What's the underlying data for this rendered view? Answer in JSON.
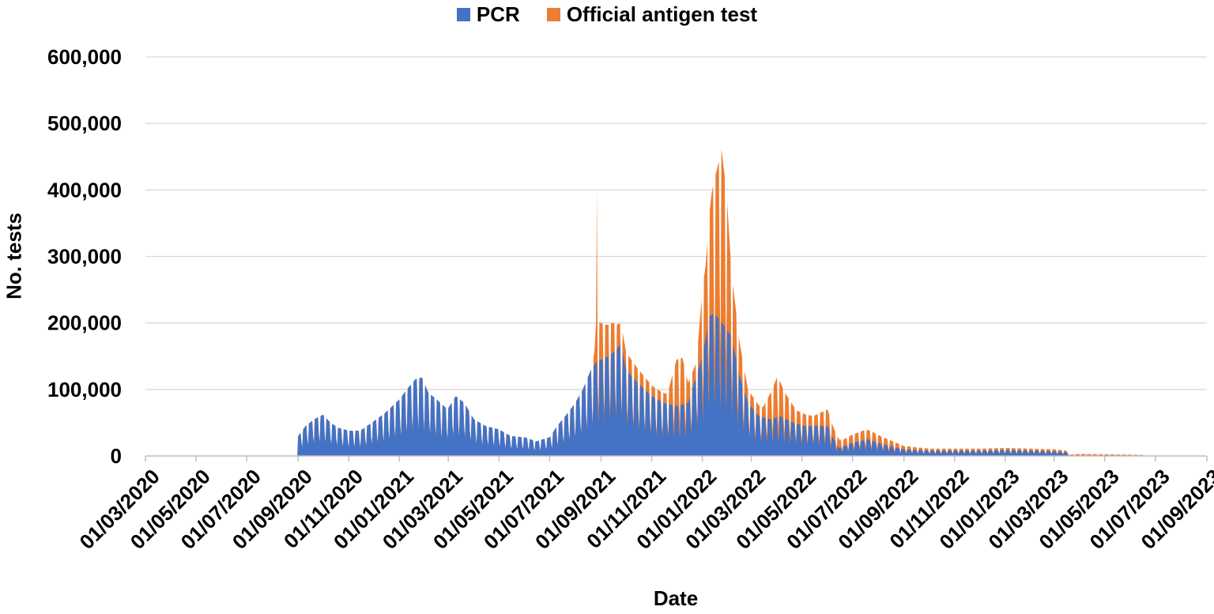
{
  "chart_data": {
    "type": "area",
    "stacked": true,
    "xlabel": "Date",
    "ylabel": "No. tests",
    "legend_position": "top-center",
    "grid": true,
    "ylim": [
      0,
      600000
    ],
    "yticks": [
      0,
      100000,
      200000,
      300000,
      400000,
      500000,
      600000
    ],
    "ytick_labels": [
      "0",
      "100,000",
      "200,000",
      "300,000",
      "400,000",
      "500,000",
      "600,000"
    ],
    "xlim": [
      "2020-03-01",
      "2023-09-01"
    ],
    "xtick_labels": [
      "01/03/2020",
      "01/05/2020",
      "01/07/2020",
      "01/09/2020",
      "01/11/2020",
      "01/01/2021",
      "01/03/2021",
      "01/05/2021",
      "01/07/2021",
      "01/09/2021",
      "01/11/2021",
      "01/01/2022",
      "01/03/2022",
      "01/05/2022",
      "01/07/2022",
      "01/09/2022",
      "01/11/2022",
      "01/01/2023",
      "01/03/2023",
      "01/05/2023",
      "01/07/2023",
      "01/09/2023"
    ],
    "xtick_dates": [
      "2020-03-01",
      "2020-05-01",
      "2020-07-01",
      "2020-09-01",
      "2020-11-01",
      "2021-01-01",
      "2021-03-01",
      "2021-05-01",
      "2021-07-01",
      "2021-09-01",
      "2021-11-01",
      "2022-01-01",
      "2022-03-01",
      "2022-05-01",
      "2022-07-01",
      "2022-09-01",
      "2022-11-01",
      "2023-01-01",
      "2023-03-01",
      "2023-05-01",
      "2023-07-01",
      "2023-09-01"
    ],
    "series": [
      {
        "name": "PCR",
        "color": "#4472C4",
        "points": [
          [
            "2020-03-01",
            0
          ],
          [
            "2020-08-31",
            0
          ],
          [
            "2020-09-01",
            30000
          ],
          [
            "2020-09-10",
            45000
          ],
          [
            "2020-09-20",
            55000
          ],
          [
            "2020-10-01",
            62000
          ],
          [
            "2020-10-10",
            50000
          ],
          [
            "2020-10-20",
            42000
          ],
          [
            "2020-11-01",
            38000
          ],
          [
            "2020-11-15",
            38000
          ],
          [
            "2020-12-01",
            52000
          ],
          [
            "2020-12-15",
            65000
          ],
          [
            "2021-01-01",
            85000
          ],
          [
            "2021-01-10",
            100000
          ],
          [
            "2021-01-20",
            115000
          ],
          [
            "2021-01-28",
            118000
          ],
          [
            "2021-02-05",
            95000
          ],
          [
            "2021-02-15",
            85000
          ],
          [
            "2021-02-28",
            70000
          ],
          [
            "2021-03-10",
            90000
          ],
          [
            "2021-03-20",
            80000
          ],
          [
            "2021-04-01",
            55000
          ],
          [
            "2021-04-15",
            45000
          ],
          [
            "2021-05-01",
            40000
          ],
          [
            "2021-05-15",
            30000
          ],
          [
            "2021-06-01",
            28000
          ],
          [
            "2021-06-15",
            22000
          ],
          [
            "2021-07-01",
            28000
          ],
          [
            "2021-07-10",
            45000
          ],
          [
            "2021-07-20",
            60000
          ],
          [
            "2021-08-01",
            80000
          ],
          [
            "2021-08-10",
            100000
          ],
          [
            "2021-08-20",
            130000
          ],
          [
            "2021-08-26",
            140000
          ],
          [
            "2021-09-01",
            145000
          ],
          [
            "2021-09-10",
            150000
          ],
          [
            "2021-09-20",
            160000
          ],
          [
            "2021-09-25",
            170000
          ],
          [
            "2021-10-01",
            130000
          ],
          [
            "2021-10-15",
            110000
          ],
          [
            "2021-11-01",
            90000
          ],
          [
            "2021-11-15",
            80000
          ],
          [
            "2021-12-01",
            75000
          ],
          [
            "2021-12-15",
            80000
          ],
          [
            "2022-01-01",
            150000
          ],
          [
            "2022-01-10",
            210000
          ],
          [
            "2022-01-15",
            215000
          ],
          [
            "2022-01-25",
            200000
          ],
          [
            "2022-02-05",
            180000
          ],
          [
            "2022-02-15",
            120000
          ],
          [
            "2022-02-25",
            80000
          ],
          [
            "2022-03-10",
            60000
          ],
          [
            "2022-03-25",
            55000
          ],
          [
            "2022-04-05",
            60000
          ],
          [
            "2022-04-20",
            50000
          ],
          [
            "2022-05-05",
            45000
          ],
          [
            "2022-05-20",
            45000
          ],
          [
            "2022-06-01",
            45000
          ],
          [
            "2022-06-06",
            30000
          ],
          [
            "2022-06-15",
            12000
          ],
          [
            "2022-07-01",
            20000
          ],
          [
            "2022-07-20",
            25000
          ],
          [
            "2022-08-05",
            18000
          ],
          [
            "2022-09-01",
            10000
          ],
          [
            "2022-10-01",
            8000
          ],
          [
            "2022-11-01",
            8000
          ],
          [
            "2022-12-01",
            8000
          ],
          [
            "2023-01-01",
            9000
          ],
          [
            "2023-02-01",
            8000
          ],
          [
            "2023-03-01",
            7000
          ],
          [
            "2023-03-15",
            6000
          ],
          [
            "2023-03-20",
            0
          ],
          [
            "2023-09-01",
            0
          ]
        ]
      },
      {
        "name": "Official antigen test",
        "color": "#ED7D31",
        "points": [
          [
            "2020-03-01",
            0
          ],
          [
            "2021-08-20",
            0
          ],
          [
            "2021-08-24",
            20000
          ],
          [
            "2021-08-26",
            60000
          ],
          [
            "2021-08-27",
            260000
          ],
          [
            "2021-08-28",
            60000
          ],
          [
            "2021-09-05",
            50000
          ],
          [
            "2021-09-15",
            45000
          ],
          [
            "2021-09-25",
            30000
          ],
          [
            "2021-10-05",
            25000
          ],
          [
            "2021-10-20",
            20000
          ],
          [
            "2021-11-05",
            15000
          ],
          [
            "2021-11-20",
            15000
          ],
          [
            "2021-12-01",
            70000
          ],
          [
            "2021-12-08",
            70000
          ],
          [
            "2021-12-15",
            30000
          ],
          [
            "2021-12-25",
            20000
          ],
          [
            "2022-01-01",
            100000
          ],
          [
            "2022-01-05",
            110000
          ],
          [
            "2022-01-12",
            180000
          ],
          [
            "2022-01-20",
            230000
          ],
          [
            "2022-01-24",
            260000
          ],
          [
            "2022-01-30",
            210000
          ],
          [
            "2022-02-05",
            100000
          ],
          [
            "2022-02-15",
            50000
          ],
          [
            "2022-02-25",
            20000
          ],
          [
            "2022-03-15",
            15000
          ],
          [
            "2022-04-01",
            60000
          ],
          [
            "2022-04-10",
            40000
          ],
          [
            "2022-04-25",
            20000
          ],
          [
            "2022-05-15",
            15000
          ],
          [
            "2022-06-01",
            25000
          ],
          [
            "2022-06-10",
            15000
          ],
          [
            "2022-06-20",
            10000
          ],
          [
            "2022-07-15",
            15000
          ],
          [
            "2022-08-01",
            12000
          ],
          [
            "2022-09-01",
            5000
          ],
          [
            "2022-10-01",
            3000
          ],
          [
            "2022-11-01",
            3000
          ],
          [
            "2022-12-01",
            3000
          ],
          [
            "2023-01-01",
            3000
          ],
          [
            "2023-02-01",
            3000
          ],
          [
            "2023-03-01",
            3000
          ],
          [
            "2023-03-20",
            2000
          ],
          [
            "2023-04-01",
            3000
          ],
          [
            "2023-05-01",
            2500
          ],
          [
            "2023-06-01",
            2000
          ],
          [
            "2023-06-15",
            1500
          ],
          [
            "2023-06-25",
            0
          ],
          [
            "2023-09-01",
            0
          ]
        ]
      }
    ]
  }
}
